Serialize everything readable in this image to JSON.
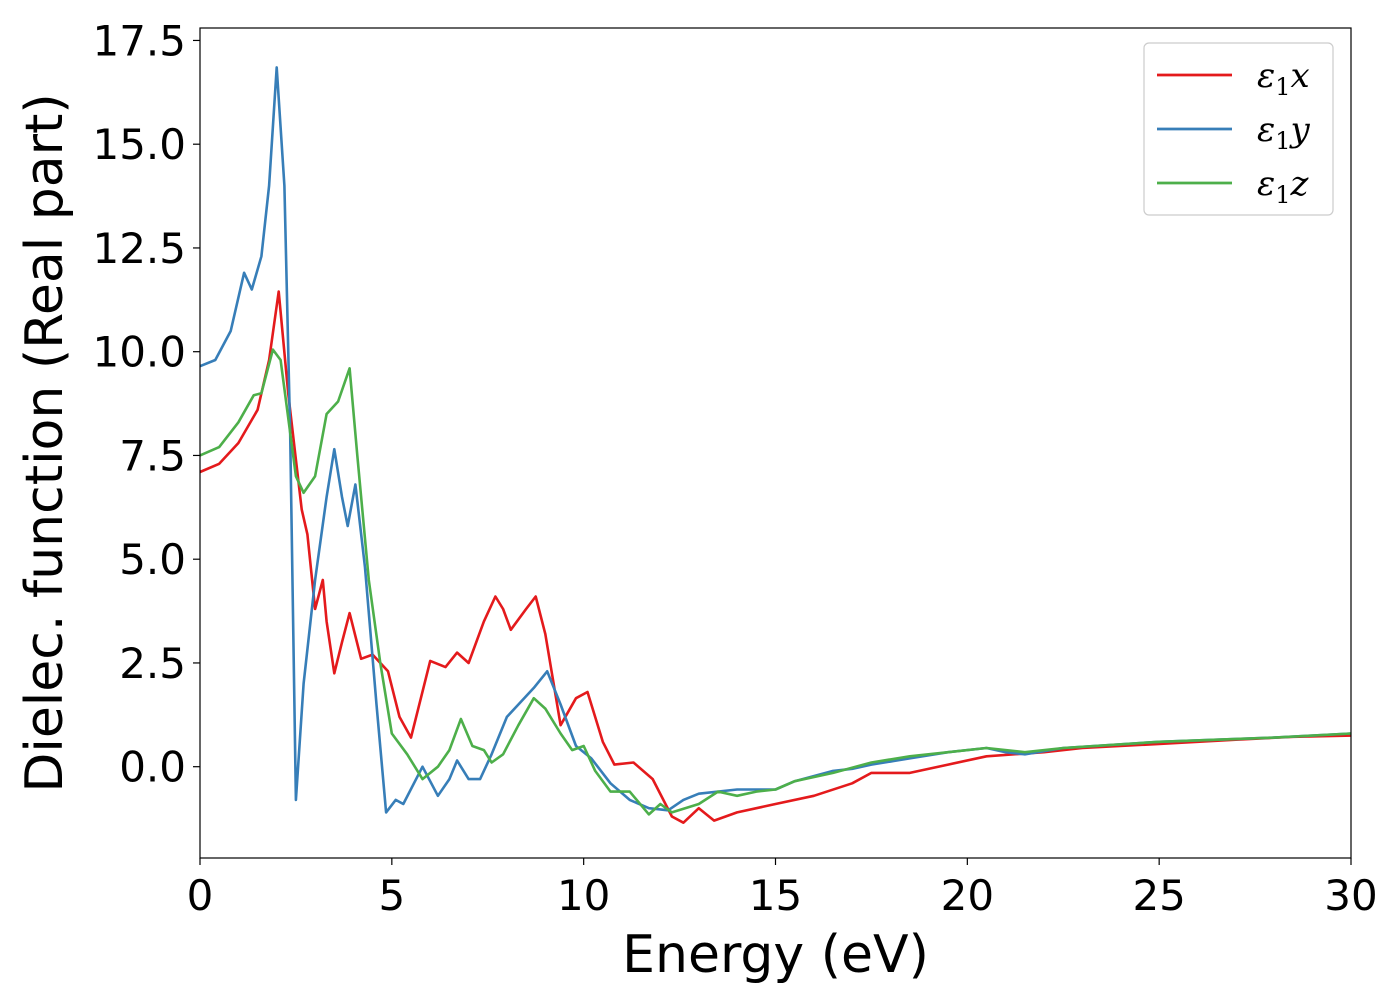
{
  "chart_data": {
    "type": "line",
    "xlabel": "Energy (eV)",
    "ylabel": "Dielec. function (Real part)",
    "xlim": [
      0,
      30
    ],
    "ylim": [
      -2.2,
      17.8
    ],
    "xticks": [
      0,
      5,
      10,
      15,
      20,
      25,
      30
    ],
    "xtick_labels": [
      "0",
      "5",
      "10",
      "15",
      "20",
      "25",
      "30"
    ],
    "yticks": [
      0,
      2.5,
      5,
      7.5,
      10,
      12.5,
      15,
      17.5
    ],
    "ytick_labels": [
      "0.0",
      "2.5",
      "5.0",
      "7.5",
      "10.0",
      "12.5",
      "15.0",
      "17.5"
    ],
    "grid": false,
    "legend_position": "top-right",
    "series": [
      {
        "name": "ε1x",
        "legend_symbol": "ε",
        "legend_sub": "1",
        "legend_var": "x",
        "color": "#e41a1c",
        "points": [
          [
            0,
            7.1
          ],
          [
            0.5,
            7.3
          ],
          [
            1.0,
            7.8
          ],
          [
            1.5,
            8.6
          ],
          [
            1.8,
            9.8
          ],
          [
            2.05,
            11.45
          ],
          [
            2.3,
            9.0
          ],
          [
            2.5,
            7.4
          ],
          [
            2.65,
            6.2
          ],
          [
            2.8,
            5.6
          ],
          [
            3.0,
            3.8
          ],
          [
            3.2,
            4.5
          ],
          [
            3.3,
            3.5
          ],
          [
            3.5,
            2.25
          ],
          [
            3.7,
            3.0
          ],
          [
            3.9,
            3.7
          ],
          [
            4.2,
            2.6
          ],
          [
            4.5,
            2.7
          ],
          [
            4.9,
            2.3
          ],
          [
            5.2,
            1.2
          ],
          [
            5.5,
            0.7
          ],
          [
            6.0,
            2.55
          ],
          [
            6.4,
            2.4
          ],
          [
            6.7,
            2.75
          ],
          [
            7.0,
            2.5
          ],
          [
            7.4,
            3.5
          ],
          [
            7.7,
            4.1
          ],
          [
            7.9,
            3.8
          ],
          [
            8.1,
            3.3
          ],
          [
            8.5,
            3.8
          ],
          [
            8.75,
            4.1
          ],
          [
            9.0,
            3.2
          ],
          [
            9.4,
            1.0
          ],
          [
            9.8,
            1.65
          ],
          [
            10.1,
            1.8
          ],
          [
            10.5,
            0.6
          ],
          [
            10.8,
            0.05
          ],
          [
            11.3,
            0.1
          ],
          [
            11.8,
            -0.3
          ],
          [
            12.3,
            -1.2
          ],
          [
            12.6,
            -1.35
          ],
          [
            13.0,
            -1.0
          ],
          [
            13.4,
            -1.3
          ],
          [
            14.0,
            -1.1
          ],
          [
            15.0,
            -0.9
          ],
          [
            16.0,
            -0.7
          ],
          [
            17.0,
            -0.4
          ],
          [
            17.5,
            -0.15
          ],
          [
            18.5,
            -0.15
          ],
          [
            19.5,
            0.05
          ],
          [
            20.5,
            0.25
          ],
          [
            22.0,
            0.35
          ],
          [
            23.0,
            0.45
          ],
          [
            25.0,
            0.55
          ],
          [
            27.0,
            0.65
          ],
          [
            28.5,
            0.72
          ],
          [
            30.0,
            0.75
          ]
        ]
      },
      {
        "name": "ε1y",
        "legend_symbol": "ε",
        "legend_sub": "1",
        "legend_var": "y",
        "color": "#377eb8",
        "points": [
          [
            0,
            9.65
          ],
          [
            0.4,
            9.8
          ],
          [
            0.8,
            10.5
          ],
          [
            1.15,
            11.9
          ],
          [
            1.35,
            11.5
          ],
          [
            1.6,
            12.3
          ],
          [
            1.8,
            14.0
          ],
          [
            2.0,
            16.85
          ],
          [
            2.2,
            14.0
          ],
          [
            2.35,
            8.0
          ],
          [
            2.5,
            -0.8
          ],
          [
            2.7,
            2.0
          ],
          [
            3.0,
            4.5
          ],
          [
            3.3,
            6.5
          ],
          [
            3.5,
            7.65
          ],
          [
            3.7,
            6.5
          ],
          [
            3.85,
            5.8
          ],
          [
            4.05,
            6.8
          ],
          [
            4.3,
            4.8
          ],
          [
            4.6,
            1.5
          ],
          [
            4.85,
            -1.1
          ],
          [
            5.1,
            -0.8
          ],
          [
            5.3,
            -0.9
          ],
          [
            5.8,
            0.0
          ],
          [
            6.2,
            -0.7
          ],
          [
            6.5,
            -0.3
          ],
          [
            6.7,
            0.15
          ],
          [
            7.0,
            -0.3
          ],
          [
            7.3,
            -0.3
          ],
          [
            7.6,
            0.3
          ],
          [
            8.0,
            1.2
          ],
          [
            8.3,
            1.5
          ],
          [
            8.7,
            1.9
          ],
          [
            9.05,
            2.3
          ],
          [
            9.4,
            1.5
          ],
          [
            9.8,
            0.5
          ],
          [
            10.2,
            0.2
          ],
          [
            10.7,
            -0.4
          ],
          [
            11.2,
            -0.8
          ],
          [
            11.7,
            -1.0
          ],
          [
            12.2,
            -1.05
          ],
          [
            12.6,
            -0.8
          ],
          [
            13.0,
            -0.65
          ],
          [
            14.0,
            -0.55
          ],
          [
            15.0,
            -0.55
          ],
          [
            15.5,
            -0.35
          ],
          [
            16.5,
            -0.1
          ],
          [
            17.0,
            -0.05
          ],
          [
            17.5,
            0.05
          ],
          [
            18.5,
            0.2
          ],
          [
            19.5,
            0.35
          ],
          [
            20.5,
            0.45
          ],
          [
            21.0,
            0.35
          ],
          [
            21.5,
            0.3
          ],
          [
            22.5,
            0.45
          ],
          [
            25.0,
            0.6
          ],
          [
            28.0,
            0.7
          ],
          [
            30.0,
            0.8
          ]
        ]
      },
      {
        "name": "ε1z",
        "legend_symbol": "ε",
        "legend_sub": "1",
        "legend_var": "z",
        "color": "#4daf4a",
        "points": [
          [
            0,
            7.5
          ],
          [
            0.5,
            7.7
          ],
          [
            1.0,
            8.3
          ],
          [
            1.4,
            8.95
          ],
          [
            1.6,
            9.0
          ],
          [
            1.9,
            10.05
          ],
          [
            2.1,
            9.8
          ],
          [
            2.5,
            7.0
          ],
          [
            2.7,
            6.6
          ],
          [
            3.0,
            7.0
          ],
          [
            3.3,
            8.5
          ],
          [
            3.6,
            8.8
          ],
          [
            3.9,
            9.6
          ],
          [
            4.1,
            7.5
          ],
          [
            4.4,
            4.5
          ],
          [
            4.7,
            2.5
          ],
          [
            5.0,
            0.8
          ],
          [
            5.4,
            0.3
          ],
          [
            5.8,
            -0.3
          ],
          [
            6.2,
            0.0
          ],
          [
            6.5,
            0.4
          ],
          [
            6.8,
            1.15
          ],
          [
            7.1,
            0.5
          ],
          [
            7.4,
            0.4
          ],
          [
            7.6,
            0.1
          ],
          [
            7.9,
            0.3
          ],
          [
            8.3,
            1.0
          ],
          [
            8.7,
            1.65
          ],
          [
            9.0,
            1.4
          ],
          [
            9.4,
            0.8
          ],
          [
            9.7,
            0.4
          ],
          [
            10.0,
            0.5
          ],
          [
            10.3,
            -0.1
          ],
          [
            10.7,
            -0.6
          ],
          [
            11.2,
            -0.6
          ],
          [
            11.7,
            -1.15
          ],
          [
            12.0,
            -0.9
          ],
          [
            12.3,
            -1.1
          ],
          [
            13.0,
            -0.9
          ],
          [
            13.5,
            -0.6
          ],
          [
            14.0,
            -0.7
          ],
          [
            14.5,
            -0.6
          ],
          [
            15.0,
            -0.55
          ],
          [
            15.5,
            -0.35
          ],
          [
            16.5,
            -0.15
          ],
          [
            17.5,
            0.1
          ],
          [
            18.5,
            0.25
          ],
          [
            19.5,
            0.35
          ],
          [
            20.5,
            0.45
          ],
          [
            21.5,
            0.35
          ],
          [
            22.5,
            0.45
          ],
          [
            25.0,
            0.6
          ],
          [
            28.0,
            0.7
          ],
          [
            30.0,
            0.8
          ]
        ]
      }
    ]
  }
}
